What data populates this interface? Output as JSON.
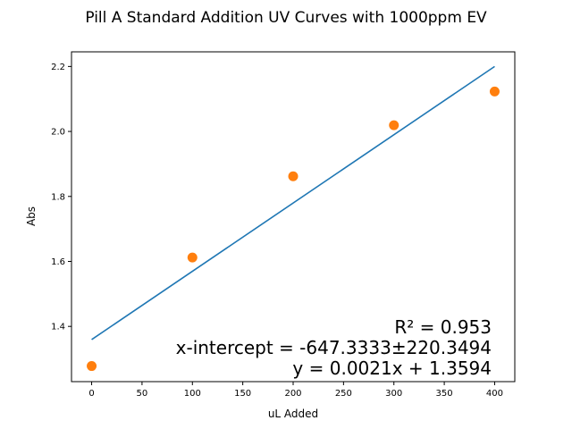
{
  "chart_data": {
    "type": "scatter",
    "title": "Pill A Standard Addition UV Curves with 1000ppm EV",
    "xlabel": "uL Added",
    "ylabel": "Abs",
    "xlim": [
      -20,
      420
    ],
    "ylim": [
      1.23,
      2.245
    ],
    "xticks": [
      0,
      50,
      100,
      150,
      200,
      250,
      300,
      350,
      400
    ],
    "yticks": [
      1.4,
      1.6,
      1.8,
      2.0,
      2.2
    ],
    "ytick_labels": [
      "1.4",
      "1.6",
      "1.8",
      "2.0",
      "2.2"
    ],
    "grid": false,
    "series": [
      {
        "name": "data",
        "kind": "scatter",
        "color": "#ff7f0e",
        "x": [
          0,
          100,
          200,
          300,
          400
        ],
        "y": [
          1.278,
          1.612,
          1.862,
          2.019,
          2.123
        ]
      },
      {
        "name": "fit",
        "kind": "line",
        "color": "#1f77b4",
        "x": [
          0,
          400
        ],
        "y": [
          1.3594,
          2.2
        ]
      }
    ],
    "annotations": [
      "R² = 0.953",
      "x-intercept = -647.3333±220.3494",
      "y = 0.0021x + 1.3594"
    ]
  }
}
